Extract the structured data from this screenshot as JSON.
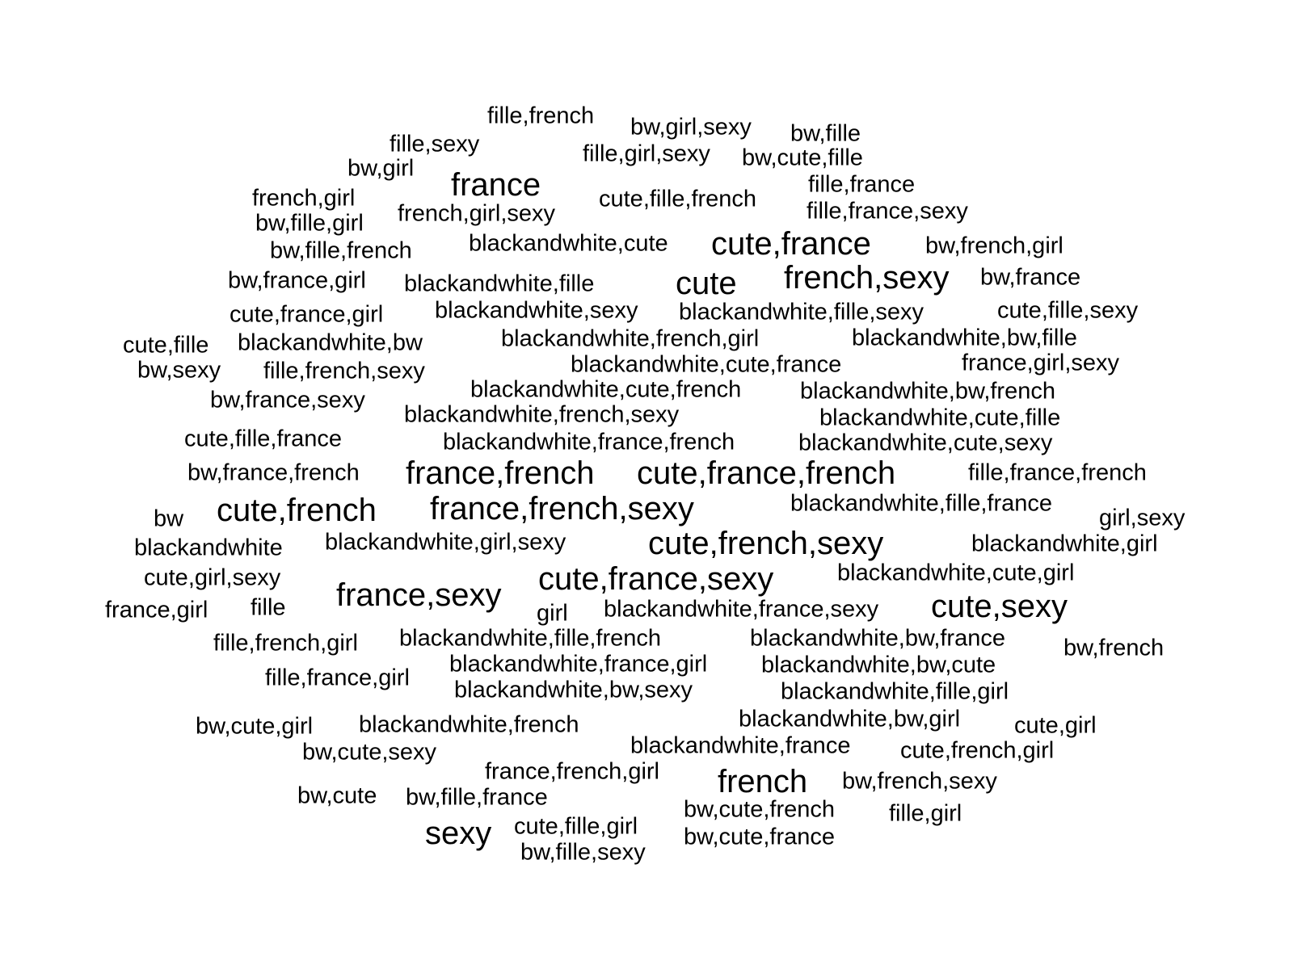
{
  "word_cloud": {
    "text_color": "#000000",
    "background": "#ffffff",
    "words": [
      {
        "text": "fille,french",
        "weight": 1
      },
      {
        "text": "bw,girl,sexy",
        "weight": 1
      },
      {
        "text": "bw,fille",
        "weight": 1
      },
      {
        "text": "fille,sexy",
        "weight": 1
      },
      {
        "text": "fille,girl,sexy",
        "weight": 1
      },
      {
        "text": "bw,cute,fille",
        "weight": 1
      },
      {
        "text": "bw,girl",
        "weight": 1
      },
      {
        "text": "france",
        "weight": 2
      },
      {
        "text": "fille,france",
        "weight": 1
      },
      {
        "text": "french,girl",
        "weight": 1
      },
      {
        "text": "cute,fille,french",
        "weight": 1
      },
      {
        "text": "french,girl,sexy",
        "weight": 1
      },
      {
        "text": "fille,france,sexy",
        "weight": 1
      },
      {
        "text": "bw,fille,girl",
        "weight": 1
      },
      {
        "text": "blackandwhite,cute",
        "weight": 1
      },
      {
        "text": "cute,france",
        "weight": 2
      },
      {
        "text": "bw,french,girl",
        "weight": 1
      },
      {
        "text": "bw,fille,french",
        "weight": 1
      },
      {
        "text": "bw,france,girl",
        "weight": 1
      },
      {
        "text": "blackandwhite,fille",
        "weight": 1
      },
      {
        "text": "cute",
        "weight": 2
      },
      {
        "text": "french,sexy",
        "weight": 2
      },
      {
        "text": "bw,france",
        "weight": 1
      },
      {
        "text": "cute,france,girl",
        "weight": 1
      },
      {
        "text": "blackandwhite,sexy",
        "weight": 1
      },
      {
        "text": "blackandwhite,fille,sexy",
        "weight": 1
      },
      {
        "text": "cute,fille,sexy",
        "weight": 1
      },
      {
        "text": "cute,fille",
        "weight": 1
      },
      {
        "text": "blackandwhite,bw",
        "weight": 1
      },
      {
        "text": "blackandwhite,french,girl",
        "weight": 1
      },
      {
        "text": "blackandwhite,bw,fille",
        "weight": 1
      },
      {
        "text": "bw,sexy",
        "weight": 1
      },
      {
        "text": "fille,french,sexy",
        "weight": 1
      },
      {
        "text": "blackandwhite,cute,france",
        "weight": 1
      },
      {
        "text": "france,girl,sexy",
        "weight": 1
      },
      {
        "text": "blackandwhite,cute,french",
        "weight": 1
      },
      {
        "text": "blackandwhite,bw,french",
        "weight": 1
      },
      {
        "text": "bw,france,sexy",
        "weight": 1
      },
      {
        "text": "blackandwhite,french,sexy",
        "weight": 1
      },
      {
        "text": "blackandwhite,cute,fille",
        "weight": 1
      },
      {
        "text": "cute,fille,france",
        "weight": 1
      },
      {
        "text": "blackandwhite,france,french",
        "weight": 1
      },
      {
        "text": "blackandwhite,cute,sexy",
        "weight": 1
      },
      {
        "text": "bw,france,french",
        "weight": 1
      },
      {
        "text": "france,french",
        "weight": 2
      },
      {
        "text": "cute,france,french",
        "weight": 2
      },
      {
        "text": "fille,france,french",
        "weight": 1
      },
      {
        "text": "bw",
        "weight": 1
      },
      {
        "text": "cute,french",
        "weight": 2
      },
      {
        "text": "france,french,sexy",
        "weight": 2
      },
      {
        "text": "blackandwhite,fille,france",
        "weight": 1
      },
      {
        "text": "girl,sexy",
        "weight": 1
      },
      {
        "text": "blackandwhite",
        "weight": 1
      },
      {
        "text": "blackandwhite,girl,sexy",
        "weight": 1
      },
      {
        "text": "cute,french,sexy",
        "weight": 2
      },
      {
        "text": "blackandwhite,girl",
        "weight": 1
      },
      {
        "text": "cute,girl,sexy",
        "weight": 1
      },
      {
        "text": "blackandwhite,cute,girl",
        "weight": 1
      },
      {
        "text": "france,sexy",
        "weight": 2
      },
      {
        "text": "cute,france,sexy",
        "weight": 2
      },
      {
        "text": "cute,sexy",
        "weight": 2
      },
      {
        "text": "france,girl",
        "weight": 1
      },
      {
        "text": "fille",
        "weight": 1
      },
      {
        "text": "girl",
        "weight": 1
      },
      {
        "text": "blackandwhite,france,sexy",
        "weight": 1
      },
      {
        "text": "fille,french,girl",
        "weight": 1
      },
      {
        "text": "blackandwhite,fille,french",
        "weight": 1
      },
      {
        "text": "blackandwhite,bw,france",
        "weight": 1
      },
      {
        "text": "bw,french",
        "weight": 1
      },
      {
        "text": "blackandwhite,france,girl",
        "weight": 1
      },
      {
        "text": "blackandwhite,bw,cute",
        "weight": 1
      },
      {
        "text": "fille,france,girl",
        "weight": 1
      },
      {
        "text": "blackandwhite,bw,sexy",
        "weight": 1
      },
      {
        "text": "blackandwhite,fille,girl",
        "weight": 1
      },
      {
        "text": "blackandwhite,bw,girl",
        "weight": 1
      },
      {
        "text": "bw,cute,girl",
        "weight": 1
      },
      {
        "text": "blackandwhite,french",
        "weight": 1
      },
      {
        "text": "cute,girl",
        "weight": 1
      },
      {
        "text": "blackandwhite,france",
        "weight": 1
      },
      {
        "text": "bw,cute,sexy",
        "weight": 1
      },
      {
        "text": "cute,french,girl",
        "weight": 1
      },
      {
        "text": "france,french,girl",
        "weight": 1
      },
      {
        "text": "french",
        "weight": 2
      },
      {
        "text": "bw,french,sexy",
        "weight": 1
      },
      {
        "text": "bw,cute",
        "weight": 1
      },
      {
        "text": "bw,fille,france",
        "weight": 1
      },
      {
        "text": "bw,cute,french",
        "weight": 1
      },
      {
        "text": "fille,girl",
        "weight": 1
      },
      {
        "text": "sexy",
        "weight": 2
      },
      {
        "text": "cute,fille,girl",
        "weight": 1
      },
      {
        "text": "bw,cute,france",
        "weight": 1
      },
      {
        "text": "bw,fille,sexy",
        "weight": 1
      }
    ]
  }
}
